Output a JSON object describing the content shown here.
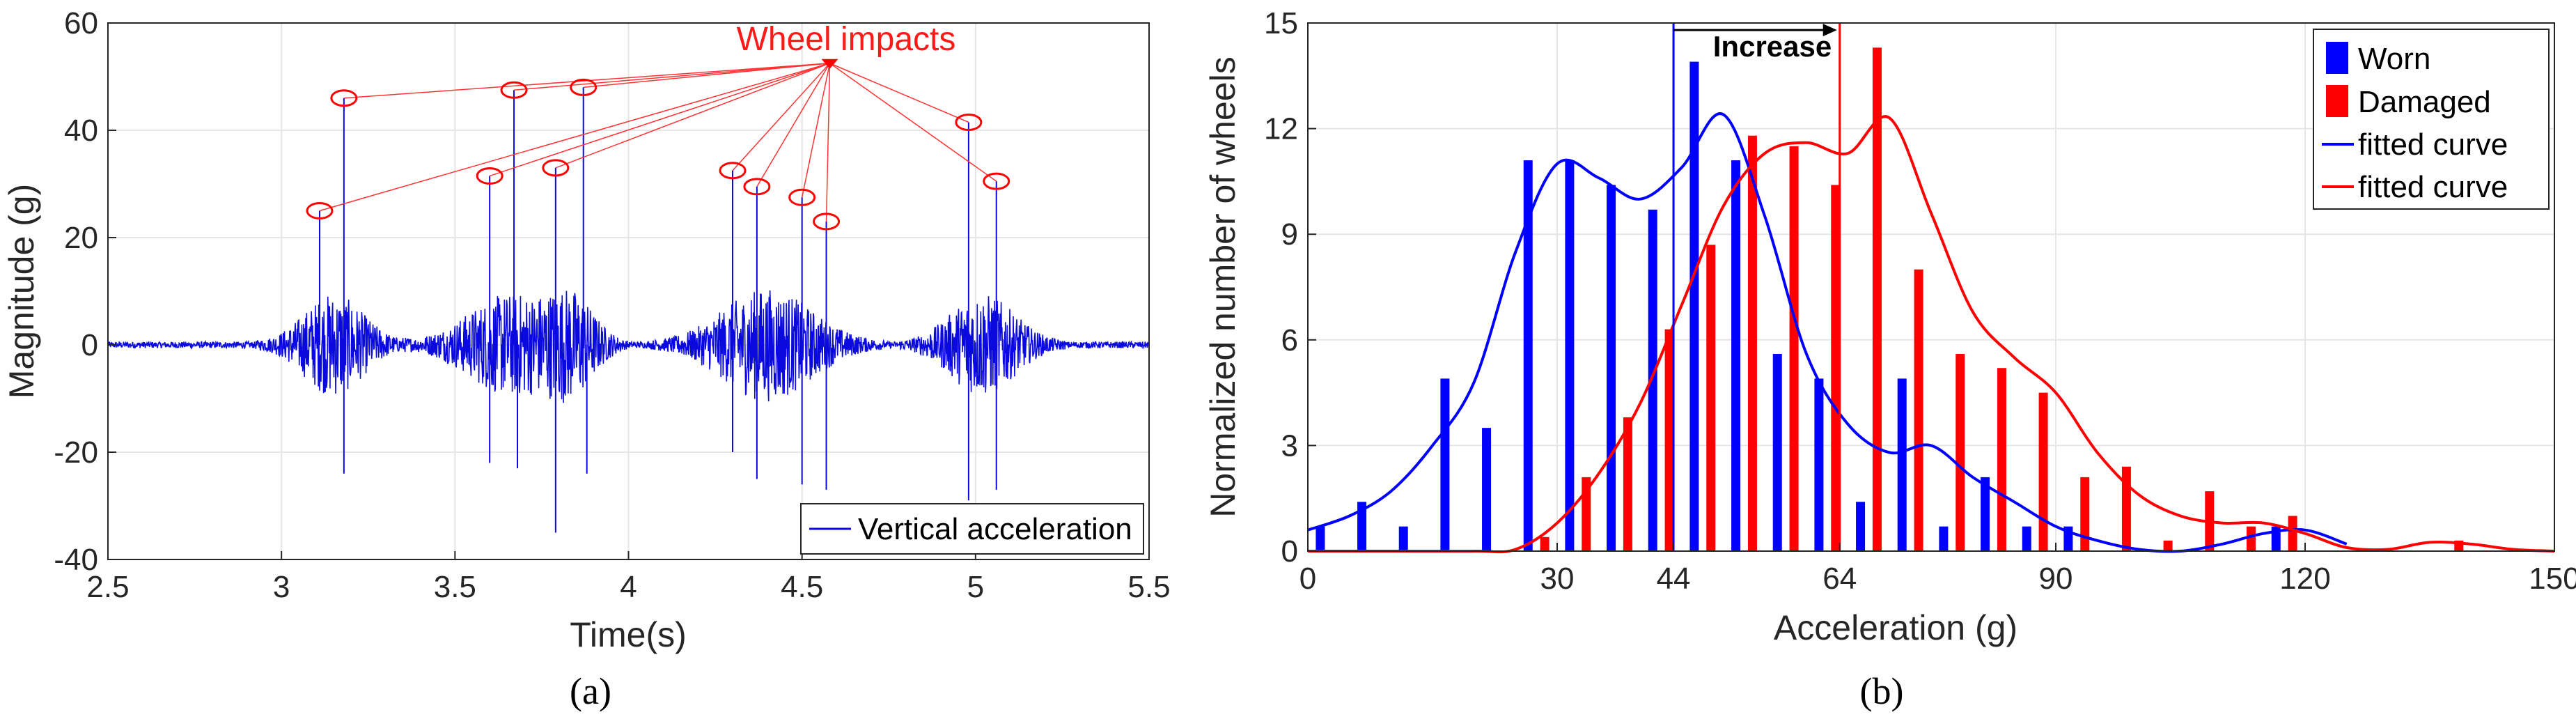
{
  "colors": {
    "blue": "#0000ff",
    "red": "#ff0000",
    "grid": "#e6e6e6",
    "axis": "#262626",
    "signal": "#0a0adf"
  },
  "chart_data": [
    {
      "type": "line",
      "caption": "(a)",
      "xlabel": "Time(s)",
      "ylabel": "Magnitude (g)",
      "xlim": [
        2.5,
        5.5
      ],
      "ylim": [
        -40,
        60
      ],
      "xticks": [
        2.5,
        3,
        3.5,
        4,
        4.5,
        5,
        5.5
      ],
      "xtick_labels": [
        "2.5",
        "3",
        "3.5",
        "4",
        "4.5",
        "5",
        "5.5"
      ],
      "yticks": [
        -40,
        -20,
        0,
        20,
        40,
        60
      ],
      "ytick_labels": [
        "-40",
        "-20",
        "0",
        "20",
        "40",
        "60"
      ],
      "grid": true,
      "legend": {
        "location": "bottom-right",
        "label": "Vertical acceleration"
      },
      "annotation": {
        "label": "Wheel impacts",
        "anchor": {
          "x": 4.58,
          "y": 52.5
        }
      },
      "impacts": [
        {
          "x": 3.11,
          "y": 25
        },
        {
          "x": 3.18,
          "y": 46
        },
        {
          "x": 3.6,
          "y": 31.5
        },
        {
          "x": 3.67,
          "y": 47.5
        },
        {
          "x": 3.79,
          "y": 33
        },
        {
          "x": 3.87,
          "y": 48
        },
        {
          "x": 4.3,
          "y": 32.5
        },
        {
          "x": 4.37,
          "y": 29.5
        },
        {
          "x": 4.5,
          "y": 27.5
        },
        {
          "x": 4.57,
          "y": 23
        },
        {
          "x": 4.98,
          "y": 41.5
        },
        {
          "x": 5.06,
          "y": 30.5
        }
      ],
      "negative_spikes": [
        {
          "x": 3.18,
          "y": -24
        },
        {
          "x": 3.6,
          "y": -22
        },
        {
          "x": 3.68,
          "y": -23
        },
        {
          "x": 3.79,
          "y": -35
        },
        {
          "x": 3.88,
          "y": -24
        },
        {
          "x": 4.3,
          "y": -20
        },
        {
          "x": 4.37,
          "y": -25
        },
        {
          "x": 4.5,
          "y": -26
        },
        {
          "x": 4.57,
          "y": -27
        },
        {
          "x": 4.98,
          "y": -29
        },
        {
          "x": 5.06,
          "y": -27
        }
      ],
      "bursts": [
        {
          "center": 3.15,
          "width": 0.28,
          "amp": 9
        },
        {
          "center": 3.66,
          "width": 0.4,
          "amp": 9
        },
        {
          "center": 3.84,
          "width": 0.2,
          "amp": 7
        },
        {
          "center": 4.4,
          "width": 0.42,
          "amp": 10
        },
        {
          "center": 5.02,
          "width": 0.3,
          "amp": 9
        }
      ]
    },
    {
      "type": "bar",
      "caption": "(b)",
      "xlabel": "Acceleration (g)",
      "ylabel": "Normalized number of wheels",
      "xlim": [
        0,
        150
      ],
      "ylim": [
        0,
        15
      ],
      "xticks": [
        0,
        30,
        44,
        64,
        90,
        120,
        150
      ],
      "xtick_labels": [
        "0",
        "30",
        "44",
        "64",
        "90",
        "120",
        "150"
      ],
      "yticks": [
        0,
        3,
        6,
        9,
        12,
        15
      ],
      "ytick_labels": [
        "0",
        "3",
        "6",
        "9",
        "12",
        "15"
      ],
      "grid": true,
      "legend": {
        "location": "top-right",
        "entries": [
          "Worn",
          "Damaged",
          "fitted curve",
          "fitted curve"
        ]
      },
      "annotation": {
        "label": "Increase",
        "from": 44,
        "to": 64
      },
      "series": [
        {
          "name": "Worn",
          "color": "blue",
          "x": [
            1.5,
            6.5,
            11.5,
            16.5,
            21.5,
            26.5,
            31.5,
            36.5,
            41.5,
            46.5,
            51.5,
            56.5,
            61.5,
            66.5,
            71.5,
            76.5,
            81.5,
            86.5,
            91.5,
            116.5
          ],
          "values": [
            0.7,
            1.4,
            0.7,
            4.9,
            3.5,
            11.1,
            11.1,
            10.4,
            9.7,
            13.9,
            11.1,
            5.6,
            4.9,
            1.4,
            4.9,
            0.7,
            2.1,
            0.7,
            0.7,
            0.7
          ]
        },
        {
          "name": "Damaged",
          "color": "red",
          "x": [
            28.5,
            33.5,
            38.5,
            43.5,
            48.5,
            53.5,
            58.5,
            63.5,
            68.5,
            73.5,
            78.5,
            83.5,
            88.5,
            93.5,
            98.5,
            103.5,
            108.5,
            113.5,
            118.5,
            138.5
          ],
          "values": [
            0.4,
            2.1,
            3.8,
            6.3,
            8.7,
            11.8,
            11.5,
            10.4,
            14.3,
            8.0,
            5.6,
            5.2,
            4.5,
            2.1,
            2.4,
            0.3,
            1.7,
            0.7,
            1.0,
            0.3
          ]
        }
      ],
      "fitted_curves": [
        {
          "name": "fitted curve",
          "color": "blue",
          "x": [
            0,
            5,
            10,
            15,
            20,
            25,
            30,
            35,
            40,
            45,
            50,
            55,
            60,
            65,
            70,
            75,
            80,
            85,
            90,
            95,
            100,
            105,
            110,
            115,
            120,
            125
          ],
          "y": [
            0.6,
            1.0,
            1.7,
            3.0,
            4.8,
            8.5,
            11.0,
            10.6,
            10.0,
            10.9,
            12.4,
            9.5,
            5.6,
            3.6,
            2.8,
            3.0,
            2.1,
            1.4,
            0.7,
            0.3,
            0.05,
            0.0,
            0.2,
            0.5,
            0.6,
            0.2
          ]
        },
        {
          "name": "fitted curve",
          "color": "red",
          "x": [
            0,
            10,
            20,
            25,
            30,
            35,
            40,
            45,
            50,
            55,
            60,
            65,
            70,
            75,
            80,
            85,
            90,
            95,
            100,
            105,
            110,
            115,
            120,
            125,
            130,
            135,
            140,
            145,
            150
          ],
          "y": [
            0.0,
            0.0,
            0.0,
            0.05,
            0.8,
            2.2,
            4.2,
            7.0,
            9.8,
            11.3,
            11.6,
            11.3,
            12.3,
            9.6,
            6.8,
            5.5,
            4.5,
            2.8,
            1.6,
            1.0,
            0.8,
            0.8,
            0.5,
            0.1,
            0.05,
            0.25,
            0.2,
            0.05,
            0.0
          ]
        }
      ]
    }
  ]
}
